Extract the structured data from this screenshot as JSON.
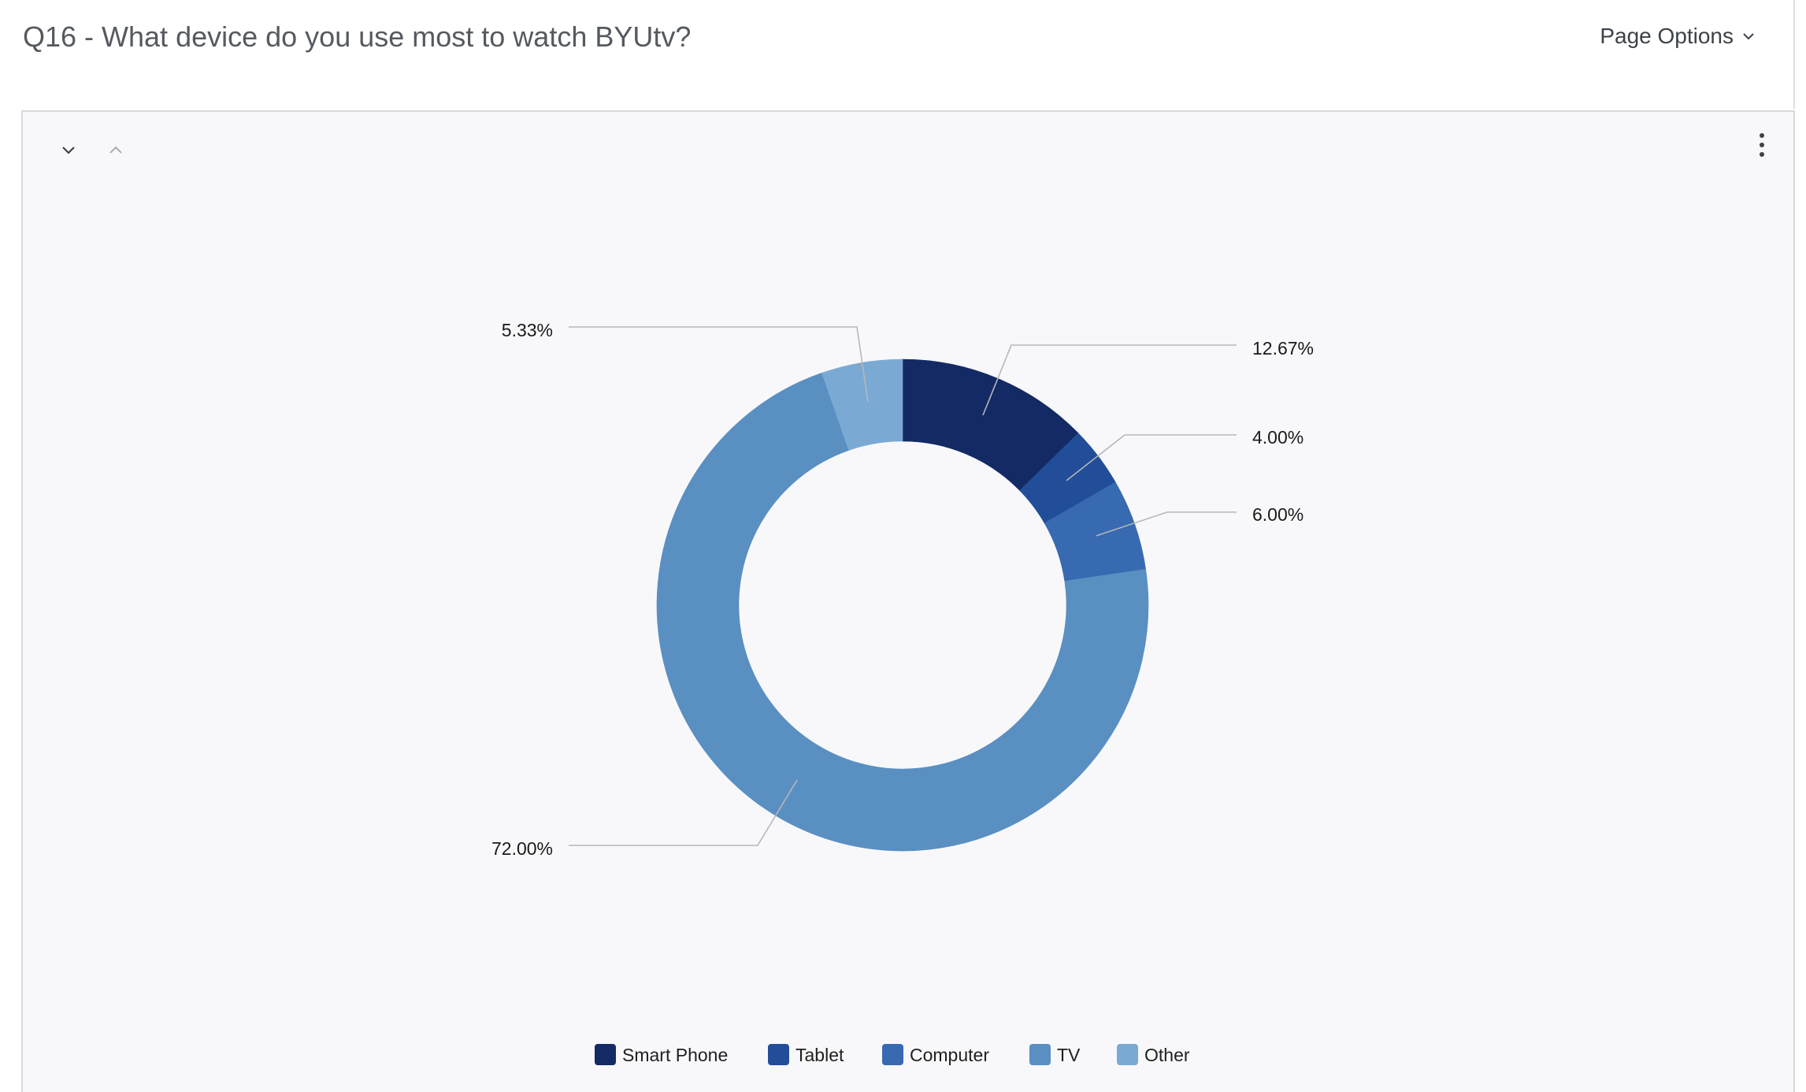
{
  "header": {
    "title": "Q16 - What device do you use most to watch BYUtv?",
    "page_options_label": "Page Options",
    "page_options_icon": "chevron-down-icon"
  },
  "toolbar": {
    "collapse_icon": "chevron-down-icon",
    "expand_icon": "chevron-up-icon",
    "more_icon": "vertical-dots-icon"
  },
  "chart_data": {
    "type": "pie",
    "variant": "donut",
    "title": "",
    "slices": [
      {
        "label": "Smart Phone",
        "value": 12.67,
        "display": "12.67%",
        "color": "#142a64"
      },
      {
        "label": "Tablet",
        "value": 4.0,
        "display": "4.00%",
        "color": "#224d98"
      },
      {
        "label": "Computer",
        "value": 6.0,
        "display": "6.00%",
        "color": "#376ab0"
      },
      {
        "label": "TV",
        "value": 72.0,
        "display": "72.00%",
        "color": "#5a8fc2"
      },
      {
        "label": "Other",
        "value": 5.33,
        "display": "5.33%",
        "color": "#7aaad4"
      }
    ],
    "legend_position": "bottom",
    "start_angle": "top",
    "direction": "clockwise"
  }
}
